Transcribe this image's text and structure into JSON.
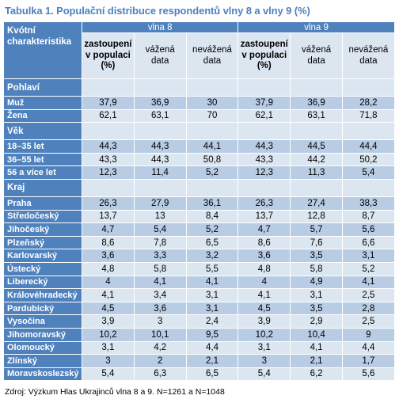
{
  "title": "Tabulka 1. Populační distribuce respondentů vlny 8 a vlny 9 (%)",
  "header": {
    "char_label_line1": "Kvótní",
    "char_label_line2": "charakteristika",
    "waves": [
      "vlna 8",
      "vlna 9"
    ],
    "subcols": [
      {
        "line1": "zastoupení",
        "line2": "v populaci",
        "line3": "(%)"
      },
      {
        "line1": "vážená",
        "line2": "data",
        "line3": ""
      },
      {
        "line1": "nevážená",
        "line2": "data",
        "line3": ""
      }
    ]
  },
  "sections": [
    {
      "label": "Pohlaví",
      "rows": [
        {
          "label": "Muž",
          "values": [
            "37,9",
            "36,9",
            "30",
            "37,9",
            "36,9",
            "28,2"
          ]
        },
        {
          "label": "Žena",
          "values": [
            "62,1",
            "63,1",
            "70",
            "62,1",
            "63,1",
            "71,8"
          ]
        }
      ]
    },
    {
      "label": "Věk",
      "rows": [
        {
          "label": "18–35 let",
          "values": [
            "44,3",
            "44,3",
            "44,1",
            "44,3",
            "44,5",
            "44,4"
          ]
        },
        {
          "label": "36–55 let",
          "values": [
            "43,3",
            "44,3",
            "50,8",
            "43,3",
            "44,2",
            "50,2"
          ]
        },
        {
          "label": "56 a více let",
          "values": [
            "12,3",
            "11,4",
            "5,2",
            "12,3",
            "11,3",
            "5,4"
          ]
        }
      ]
    },
    {
      "label": "Kraj",
      "rows": [
        {
          "label": "Praha",
          "values": [
            "26,3",
            "27,9",
            "36,1",
            "26,3",
            "27,4",
            "38,3"
          ]
        },
        {
          "label": "Středočeský",
          "values": [
            "13,7",
            "13",
            "8,4",
            "13,7",
            "12,8",
            "8,7"
          ]
        },
        {
          "label": "Jihočeský",
          "values": [
            "4,7",
            "5,4",
            "5,2",
            "4,7",
            "5,7",
            "5,6"
          ]
        },
        {
          "label": "Plzeňský",
          "values": [
            "8,6",
            "7,8",
            "6,5",
            "8,6",
            "7,6",
            "6,6"
          ]
        },
        {
          "label": "Karlovarský",
          "values": [
            "3,6",
            "3,3",
            "3,2",
            "3,6",
            "3,5",
            "3,1"
          ]
        },
        {
          "label": "Ústecký",
          "values": [
            "4,8",
            "5,8",
            "5,5",
            "4,8",
            "5,8",
            "5,2"
          ]
        },
        {
          "label": "Liberecký",
          "values": [
            "4",
            "4,1",
            "4,1",
            "4",
            "4,9",
            "4,1"
          ]
        },
        {
          "label": "Královéhradecký",
          "values": [
            "4,1",
            "3,4",
            "3,1",
            "4,1",
            "3,1",
            "2,5"
          ]
        },
        {
          "label": "Pardubický",
          "values": [
            "4,5",
            "3,6",
            "3,1",
            "4,5",
            "3,5",
            "2,8"
          ]
        },
        {
          "label": "Vysočina",
          "values": [
            "3,9",
            "3",
            "2,4",
            "3,9",
            "2,9",
            "2,5"
          ]
        },
        {
          "label": "Jihomoravský",
          "values": [
            "10,2",
            "10,1",
            "9,5",
            "10,2",
            "10,4",
            "9"
          ]
        },
        {
          "label": "Olomoucký",
          "values": [
            "3,1",
            "4,2",
            "4,4",
            "3,1",
            "4,1",
            "4,4"
          ]
        },
        {
          "label": "Zlínský",
          "values": [
            "3",
            "2",
            "2,1",
            "3",
            "2,1",
            "1,7"
          ]
        },
        {
          "label": "Moravskoslezský",
          "values": [
            "5,4",
            "6,3",
            "6,5",
            "5,4",
            "6,2",
            "5,6"
          ]
        }
      ]
    }
  ],
  "source_note": "Zdroj: Výzkum Hlas Ukrajinců vlna 8 a 9. N=1261 a N=1048"
}
